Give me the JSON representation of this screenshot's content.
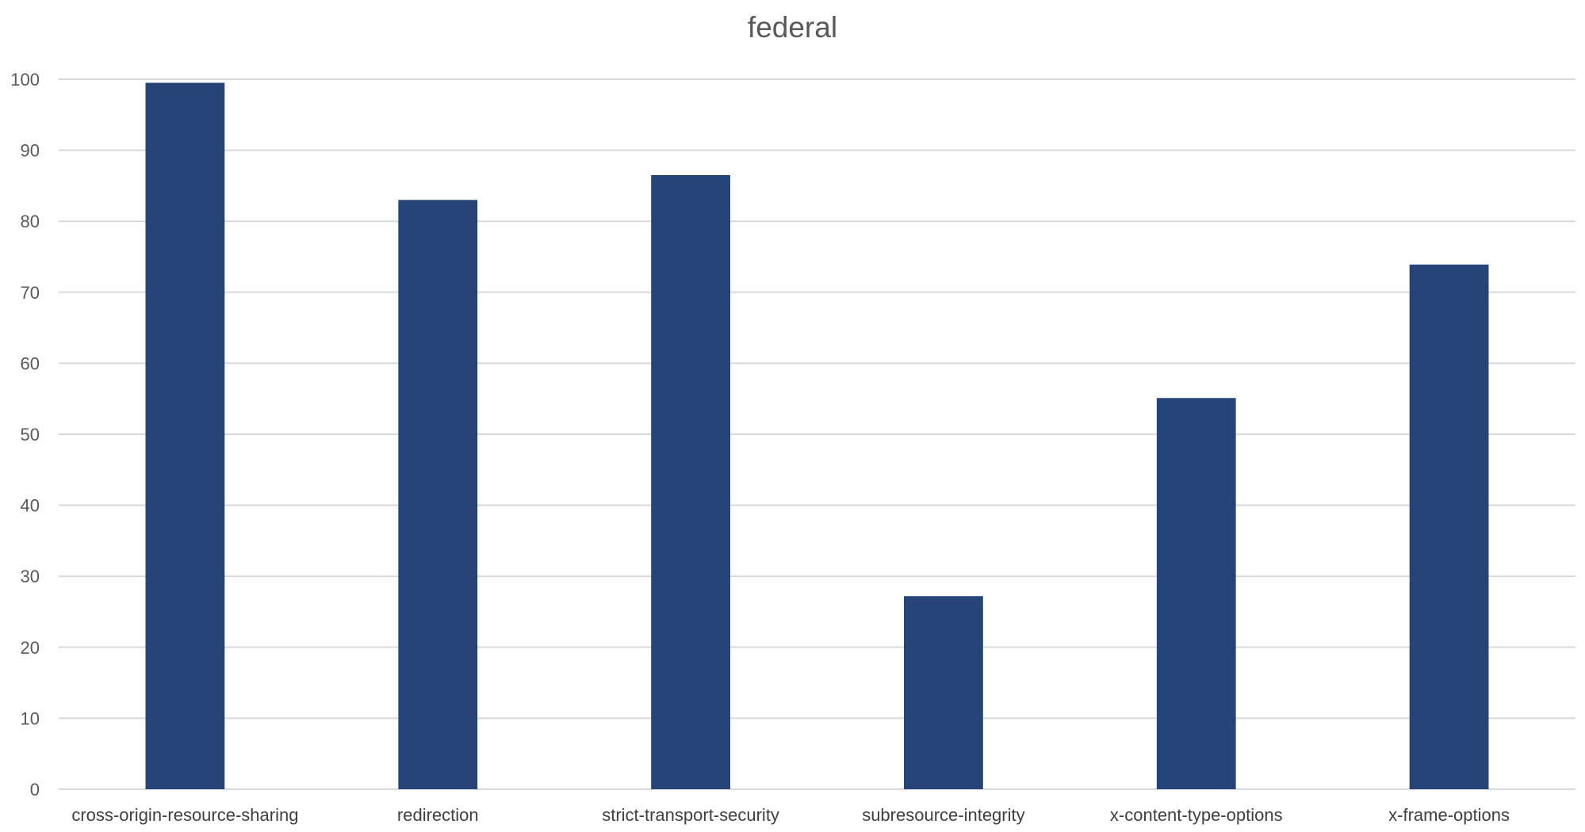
{
  "chart_data": {
    "type": "bar",
    "title": "federal",
    "categories": [
      "cross-origin-resource-sharing",
      "redirection",
      "strict-transport-security",
      "subresource-integrity",
      "x-content-type-options",
      "x-frame-options"
    ],
    "values": [
      99.5,
      83,
      86.5,
      27.2,
      55.1,
      73.9
    ],
    "ylim": [
      0,
      100
    ],
    "yticks": [
      0,
      10,
      20,
      30,
      40,
      50,
      60,
      70,
      80,
      90,
      100
    ],
    "grid": true,
    "bar_color": "#264478"
  }
}
